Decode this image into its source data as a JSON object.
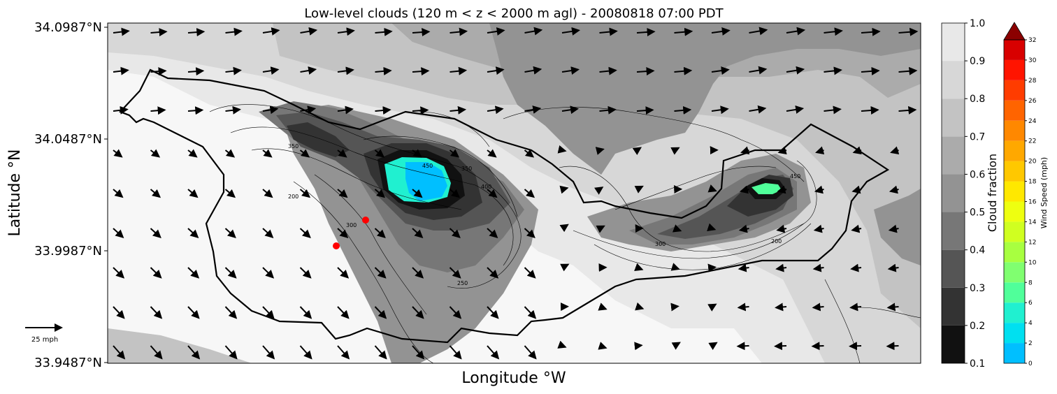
{
  "chart_data": {
    "type": "heatmap",
    "title": "Low-level clouds (120 m < z < 2000 m agl) - 20080818 07:00 PDT",
    "xlabel": "Longitude $^\\circ$W",
    "xlabel_display": "Longitude °W",
    "ylabel_display": "Latitude °N",
    "y_ticks": [
      "34.0987°N",
      "34.0487°N",
      "33.9987°N",
      "33.9487°N"
    ],
    "y_tick_values": [
      34.0987,
      34.0487,
      33.9987,
      33.9487
    ],
    "x_ticks": [],
    "cloud_fraction_colorbar": {
      "label": "Cloud fraction",
      "levels": [
        0.1,
        0.2,
        0.3,
        0.4,
        0.5,
        0.6,
        0.7,
        0.8,
        0.9,
        1.0
      ],
      "tick_labels": [
        "0.1",
        "0.2",
        "0.3",
        "0.4",
        "0.5",
        "0.6",
        "0.7",
        "0.8",
        "0.9",
        "1.0"
      ],
      "colors": [
        "#111111",
        "#333333",
        "#555555",
        "#777777",
        "#939393",
        "#ababab",
        "#c3c3c3",
        "#d7d7d7",
        "#e8e8e8",
        "#f7f7f7"
      ]
    },
    "wind_speed_colorbar": {
      "label": "Wind Speed (mph)",
      "levels": [
        0,
        2,
        4,
        6,
        8,
        10,
        12,
        14,
        16,
        18,
        20,
        22,
        24,
        26,
        28,
        30,
        32
      ],
      "tick_labels": [
        "0",
        "2",
        "4",
        "6",
        "8",
        "10",
        "12",
        "14",
        "16",
        "18",
        "20",
        "22",
        "24",
        "26",
        "28",
        "30",
        "32"
      ],
      "colors": [
        "#00bfff",
        "#00e0f0",
        "#20f0d0",
        "#50ff9a",
        "#80ff70",
        "#a8ff40",
        "#d0ff20",
        "#eeff10",
        "#ffe800",
        "#ffc800",
        "#ffa800",
        "#ff8800",
        "#ff6400",
        "#ff3c00",
        "#ff1400",
        "#d80000",
        "#8b0000"
      ],
      "extend": "max"
    },
    "contour_labels": [
      "450",
      "350",
      "400",
      "350",
      "200",
      "300",
      "250",
      "300",
      "200",
      "450"
    ],
    "reference_arrow": "25 mph",
    "markers": [
      {
        "lat": 34.0097,
        "color": "#ff0000"
      },
      {
        "lat": 33.9987,
        "color": "#ff0000"
      }
    ],
    "regions": [
      {
        "name": "high-cloud",
        "cloud_fraction": 1.0
      },
      {
        "name": "low-cloud-core-west",
        "cloud_fraction": 0.1,
        "wind_speed": [
          0,
          4
        ]
      },
      {
        "name": "low-cloud-core-east",
        "cloud_fraction": 0.1,
        "wind_speed": [
          4,
          6
        ]
      }
    ]
  }
}
